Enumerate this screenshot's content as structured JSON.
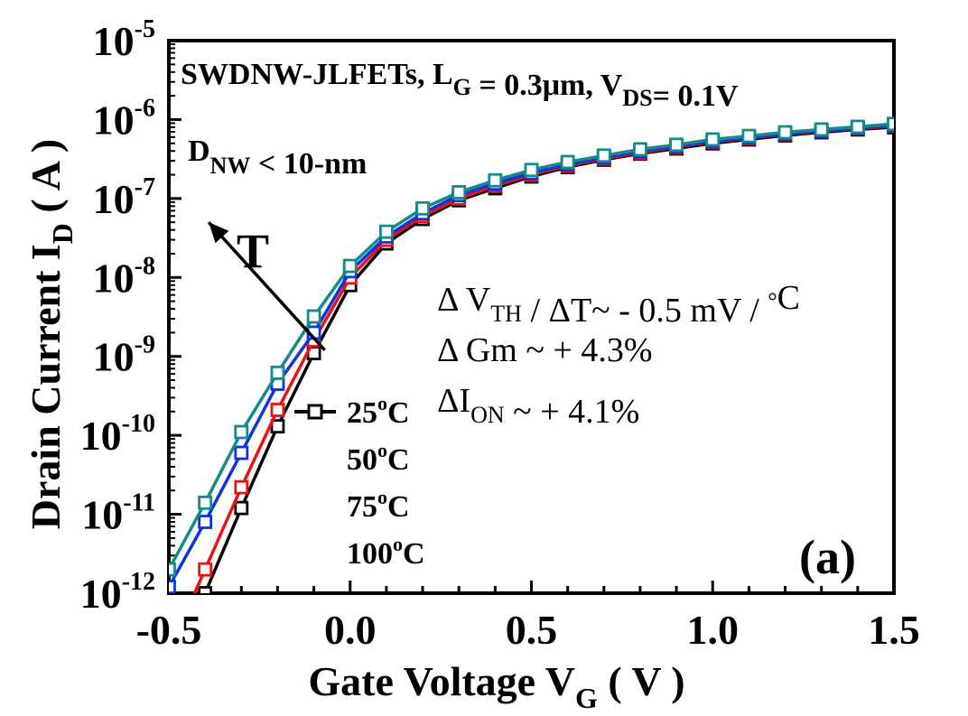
{
  "chart_data": {
    "type": "line",
    "title": "",
    "x_axis": {
      "label_main": "Gate Voltage V",
      "label_sub": "G",
      "label_unit": "( V )",
      "range": [
        -0.5,
        1.5
      ],
      "major_ticks": [
        -0.5,
        0.0,
        0.5,
        1.0,
        1.5
      ],
      "tick_labels": [
        "-0.5",
        "0.0",
        "0.5",
        "1.0",
        "1.5"
      ],
      "minor_step": 0.1
    },
    "y_axis": {
      "scale": "log",
      "label_main": "Drain Current I",
      "label_sub": "D",
      "label_unit": "( A )",
      "range_exponent": [
        -12,
        -5
      ],
      "tick_base": "10",
      "tick_exponents": [
        "-12",
        "-11",
        "-10",
        "-9",
        "-8",
        "-7",
        "-6",
        "-5"
      ]
    },
    "grid": false,
    "legend": {
      "position": "center-left"
    },
    "series": [
      {
        "name": "25°C",
        "color": "#000000",
        "x": [
          -0.4,
          -0.3,
          -0.2,
          -0.1,
          0.0,
          0.1,
          0.2,
          0.3,
          0.4,
          0.5,
          0.6,
          0.7,
          0.8,
          0.9,
          1.0,
          1.1,
          1.2,
          1.3,
          1.4,
          1.5
        ],
        "y": [
          1e-12,
          1.2e-11,
          1.3e-10,
          1.1e-09,
          8e-09,
          2.7e-08,
          5.5e-08,
          9.5e-08,
          1.35e-07,
          1.9e-07,
          2.5e-07,
          3.1e-07,
          3.7e-07,
          4.3e-07,
          5e-07,
          5.6e-07,
          6.3e-07,
          6.9e-07,
          7.5e-07,
          8e-07
        ]
      },
      {
        "name": "50°C",
        "color": "#ee1111",
        "x": [
          -0.4,
          -0.3,
          -0.2,
          -0.1,
          0.0,
          0.1,
          0.2,
          0.3,
          0.4,
          0.5,
          0.6,
          0.7,
          0.8,
          0.9,
          1.0,
          1.1,
          1.2,
          1.3,
          1.4,
          1.5
        ],
        "y": [
          2e-12,
          2.2e-11,
          2.1e-10,
          1.6e-09,
          1e-08,
          3e-08,
          6e-08,
          1e-07,
          1.45e-07,
          2e-07,
          2.6e-07,
          3.2e-07,
          3.8e-07,
          4.5e-07,
          5.2e-07,
          5.8e-07,
          6.5e-07,
          7.1e-07,
          7.7e-07,
          8.3e-07
        ]
      },
      {
        "name": "75°C",
        "color": "#1133dd",
        "x": [
          -0.5,
          -0.4,
          -0.3,
          -0.2,
          -0.1,
          0.0,
          0.1,
          0.2,
          0.3,
          0.4,
          0.5,
          0.6,
          0.7,
          0.8,
          0.9,
          1.0,
          1.1,
          1.2,
          1.3,
          1.4,
          1.5
        ],
        "y": [
          1.2e-12,
          8e-12,
          6e-11,
          4.5e-10,
          2e-09,
          1.2e-08,
          3.3e-08,
          6.5e-08,
          1.1e-07,
          1.55e-07,
          2.1e-07,
          2.7e-07,
          3.3e-07,
          3.95e-07,
          4.6e-07,
          5.3e-07,
          5.9e-07,
          6.6e-07,
          7.2e-07,
          7.8e-07,
          8.5e-07
        ]
      },
      {
        "name": "100°C",
        "color": "#138b8b",
        "x": [
          -0.5,
          -0.4,
          -0.3,
          -0.2,
          -0.1,
          0.0,
          0.1,
          0.2,
          0.3,
          0.4,
          0.5,
          0.6,
          0.7,
          0.8,
          0.9,
          1.0,
          1.1,
          1.2,
          1.3,
          1.4,
          1.5
        ],
        "y": [
          2e-12,
          1.4e-11,
          1.1e-10,
          6.2e-10,
          3.2e-09,
          1.4e-08,
          3.8e-08,
          7.5e-08,
          1.2e-07,
          1.7e-07,
          2.3e-07,
          2.9e-07,
          3.5e-07,
          4.2e-07,
          4.8e-07,
          5.6e-07,
          6.2e-07,
          6.9e-07,
          7.5e-07,
          8.1e-07,
          8.8e-07
        ]
      }
    ],
    "annotations": {
      "header_parts": [
        "SWDNW-JLFETs, L",
        "G",
        " = 0.3μm, V",
        "DS",
        "= 0.1V"
      ],
      "dnw_parts": [
        "D",
        "NW",
        " < 10-nm"
      ],
      "arrow_label": "T",
      "arrow_from": {
        "x": -0.07,
        "y": 1.2e-09
      },
      "arrow_to": {
        "x": -0.39,
        "y": 5e-08
      },
      "vth_parts": [
        "Δ V",
        "TH",
        " / ΔT~ - 0.5 mV / ",
        "°",
        "C"
      ],
      "gm_text": "Δ Gm ~ + 4.3%",
      "ion_parts": [
        "ΔI",
        "ON",
        " ~ + 4.1%"
      ],
      "panel_label": "(a)"
    }
  }
}
